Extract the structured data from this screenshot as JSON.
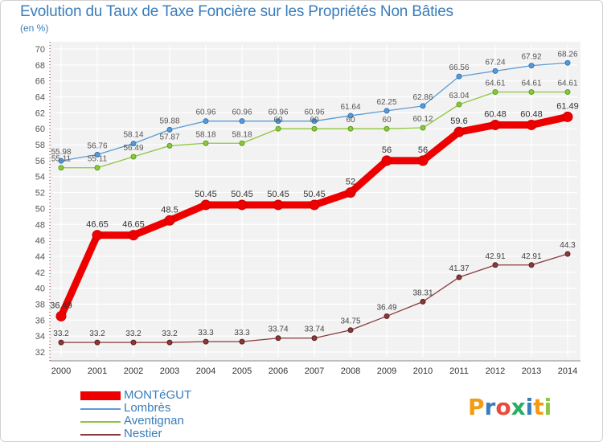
{
  "title": "Evolution du Taux de Taxe Foncière sur les Propriétés Non Bâties",
  "unit_label": "(en %)",
  "logo_text": "Proxiti",
  "chart_data": {
    "type": "line",
    "x": [
      2000,
      2001,
      2002,
      2003,
      2004,
      2005,
      2006,
      2007,
      2008,
      2009,
      2010,
      2011,
      2012,
      2013,
      2014
    ],
    "ylim": [
      32,
      70
    ],
    "y_ticks": [
      32,
      34,
      36,
      38,
      40,
      42,
      44,
      46,
      48,
      50,
      52,
      54,
      56,
      58,
      60,
      62,
      64,
      66,
      68,
      70
    ],
    "grid": true,
    "legend_position": "bottom-left",
    "series": [
      {
        "name": "MONTéGUT",
        "color": "#ee0000",
        "values": [
          36.49,
          46.65,
          46.65,
          48.5,
          50.45,
          50.45,
          50.45,
          50.45,
          52,
          56,
          56,
          59.6,
          60.48,
          60.48,
          61.49
        ],
        "labels": [
          "36.49",
          "46.65",
          "46.65",
          "48.5",
          "50.45",
          "50.45",
          "50.45",
          "50.45",
          "52",
          "56",
          "56",
          "59.6",
          "60.48",
          "60.48",
          "61.49"
        ]
      },
      {
        "name": "Lombrès",
        "color": "#5b9bd5",
        "values": [
          55.98,
          56.76,
          58.14,
          59.88,
          60.96,
          60.96,
          60.96,
          60.96,
          61.64,
          62.25,
          62.86,
          66.56,
          67.24,
          67.92,
          68.26
        ],
        "labels": [
          "55.98",
          "56.76",
          "58.14",
          "59.88",
          "60.96",
          "60.96",
          "60.96",
          "60.96",
          "61.64",
          "62.25",
          "62.86",
          "66.56",
          "67.24",
          "67.92",
          "68.26"
        ]
      },
      {
        "name": "Aventignan",
        "color": "#8dc63f",
        "values": [
          55.11,
          55.11,
          56.49,
          57.87,
          58.18,
          58.18,
          60,
          60,
          60,
          60,
          60.12,
          63.04,
          64.61,
          64.61,
          64.61
        ],
        "labels": [
          "55.11",
          "55.11",
          "56.49",
          "57.87",
          "58.18",
          "58.18",
          "60",
          "60",
          "60",
          "60",
          "60.12",
          "63.04",
          "64.61",
          "64.61",
          "64.61"
        ]
      },
      {
        "name": "Nestier",
        "color": "#8b3a3a",
        "values": [
          33.2,
          33.2,
          33.2,
          33.2,
          33.3,
          33.3,
          33.74,
          33.74,
          34.75,
          36.49,
          38.31,
          41.37,
          42.91,
          42.91,
          44.3
        ],
        "labels": [
          "33.2",
          "33.2",
          "33.2",
          "33.2",
          "33.3",
          "33.3",
          "33.74",
          "33.74",
          "34.75",
          "36.49",
          "38.31",
          "41.37",
          "42.91",
          "42.91",
          "44.3"
        ]
      }
    ]
  }
}
